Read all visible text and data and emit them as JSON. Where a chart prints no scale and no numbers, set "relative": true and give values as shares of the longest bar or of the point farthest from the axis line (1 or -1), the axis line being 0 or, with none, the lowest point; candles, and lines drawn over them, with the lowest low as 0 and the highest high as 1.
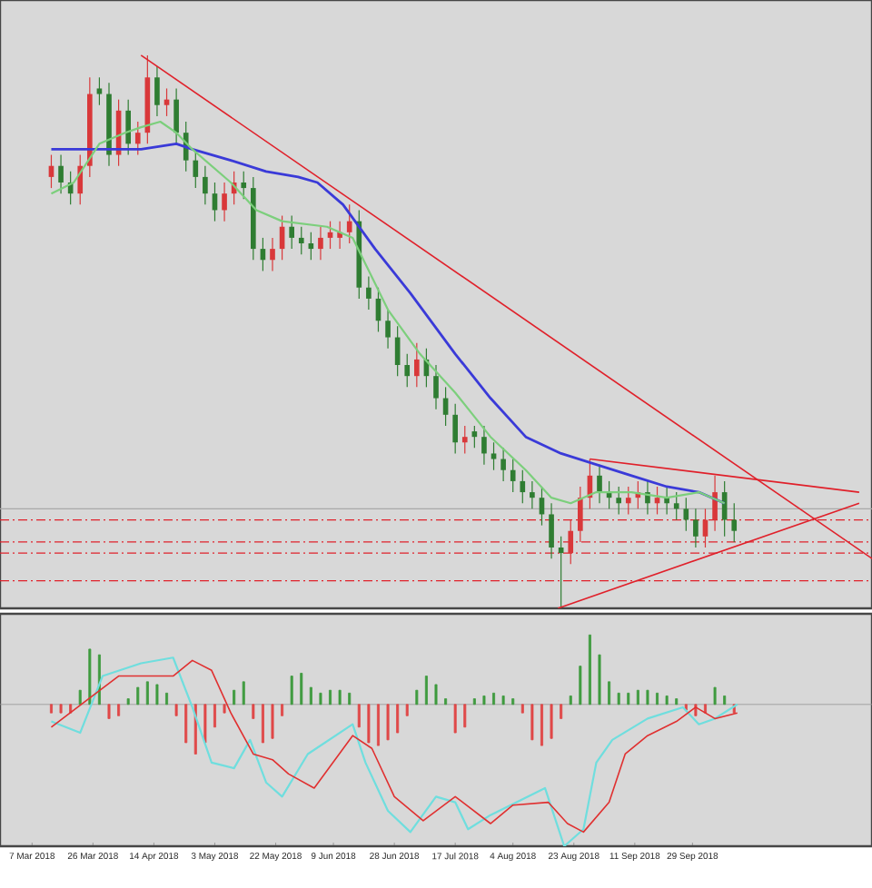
{
  "chart_data": [
    {
      "type": "candlestick",
      "relative": true,
      "xlim": [
        "2018-02-25",
        "2018-11-24"
      ],
      "tick_labels": false,
      "x": [
        "2018-03-13",
        "2018-03-16",
        "2018-03-19",
        "2018-03-22",
        "2018-03-25",
        "2018-03-28",
        "2018-03-31",
        "2018-04-03",
        "2018-04-06",
        "2018-04-09",
        "2018-04-12",
        "2018-04-15",
        "2018-04-18",
        "2018-04-21",
        "2018-04-24",
        "2018-04-27",
        "2018-04-30",
        "2018-05-03",
        "2018-05-06",
        "2018-05-09",
        "2018-05-12",
        "2018-05-15",
        "2018-05-18",
        "2018-05-21",
        "2018-05-24",
        "2018-05-27",
        "2018-05-30",
        "2018-06-02",
        "2018-06-05",
        "2018-06-08",
        "2018-06-11",
        "2018-06-14",
        "2018-06-17",
        "2018-06-20",
        "2018-06-23",
        "2018-06-26",
        "2018-06-29",
        "2018-07-02",
        "2018-07-05",
        "2018-07-08",
        "2018-07-11",
        "2018-07-14",
        "2018-07-17",
        "2018-07-20",
        "2018-07-23",
        "2018-07-26",
        "2018-07-29",
        "2018-08-01",
        "2018-08-04",
        "2018-08-07",
        "2018-08-10",
        "2018-08-13",
        "2018-08-16",
        "2018-08-19",
        "2018-08-22",
        "2018-08-25",
        "2018-08-28",
        "2018-08-31",
        "2018-09-03",
        "2018-09-06",
        "2018-09-09",
        "2018-09-12",
        "2018-09-15",
        "2018-09-18",
        "2018-09-21",
        "2018-09-24",
        "2018-09-27",
        "2018-09-30",
        "2018-10-03",
        "2018-10-06",
        "2018-10-09",
        "2018-10-12"
      ],
      "ohlc": [
        [
          0.78,
          0.82,
          0.76,
          0.8
        ],
        [
          0.8,
          0.82,
          0.75,
          0.77
        ],
        [
          0.77,
          0.79,
          0.73,
          0.75
        ],
        [
          0.75,
          0.82,
          0.73,
          0.8
        ],
        [
          0.8,
          0.96,
          0.78,
          0.93
        ],
        [
          0.94,
          0.96,
          0.91,
          0.93
        ],
        [
          0.93,
          0.95,
          0.8,
          0.82
        ],
        [
          0.82,
          0.92,
          0.8,
          0.9
        ],
        [
          0.9,
          0.92,
          0.82,
          0.84
        ],
        [
          0.84,
          0.88,
          0.82,
          0.86
        ],
        [
          0.86,
          1.0,
          0.84,
          0.96
        ],
        [
          0.96,
          0.98,
          0.89,
          0.91
        ],
        [
          0.91,
          0.94,
          0.89,
          0.92
        ],
        [
          0.92,
          0.94,
          0.84,
          0.86
        ],
        [
          0.86,
          0.88,
          0.79,
          0.81
        ],
        [
          0.81,
          0.83,
          0.76,
          0.78
        ],
        [
          0.78,
          0.8,
          0.73,
          0.75
        ],
        [
          0.75,
          0.77,
          0.7,
          0.72
        ],
        [
          0.72,
          0.77,
          0.7,
          0.75
        ],
        [
          0.75,
          0.79,
          0.73,
          0.77
        ],
        [
          0.77,
          0.79,
          0.74,
          0.76
        ],
        [
          0.76,
          0.78,
          0.63,
          0.65
        ],
        [
          0.65,
          0.67,
          0.61,
          0.63
        ],
        [
          0.63,
          0.67,
          0.61,
          0.65
        ],
        [
          0.65,
          0.71,
          0.63,
          0.69
        ],
        [
          0.69,
          0.71,
          0.65,
          0.67
        ],
        [
          0.67,
          0.69,
          0.64,
          0.66
        ],
        [
          0.66,
          0.68,
          0.63,
          0.65
        ],
        [
          0.65,
          0.69,
          0.63,
          0.67
        ],
        [
          0.67,
          0.7,
          0.65,
          0.68
        ],
        [
          0.67,
          0.7,
          0.65,
          0.68
        ],
        [
          0.68,
          0.73,
          0.66,
          0.7
        ],
        [
          0.7,
          0.72,
          0.56,
          0.58
        ],
        [
          0.58,
          0.6,
          0.54,
          0.56
        ],
        [
          0.56,
          0.58,
          0.5,
          0.52
        ],
        [
          0.52,
          0.54,
          0.47,
          0.49
        ],
        [
          0.49,
          0.51,
          0.42,
          0.44
        ],
        [
          0.44,
          0.46,
          0.4,
          0.42
        ],
        [
          0.42,
          0.48,
          0.4,
          0.45
        ],
        [
          0.45,
          0.47,
          0.4,
          0.42
        ],
        [
          0.42,
          0.44,
          0.36,
          0.38
        ],
        [
          0.38,
          0.4,
          0.33,
          0.35
        ],
        [
          0.35,
          0.37,
          0.28,
          0.3
        ],
        [
          0.3,
          0.33,
          0.28,
          0.31
        ],
        [
          0.32,
          0.33,
          0.29,
          0.31
        ],
        [
          0.31,
          0.33,
          0.26,
          0.28
        ],
        [
          0.28,
          0.3,
          0.25,
          0.27
        ],
        [
          0.27,
          0.29,
          0.23,
          0.25
        ],
        [
          0.25,
          0.27,
          0.21,
          0.23
        ],
        [
          0.23,
          0.25,
          0.19,
          0.21
        ],
        [
          0.21,
          0.23,
          0.18,
          0.2
        ],
        [
          0.2,
          0.22,
          0.15,
          0.17
        ],
        [
          0.17,
          0.19,
          0.09,
          0.11
        ],
        [
          0.11,
          0.13,
          0.0,
          0.1
        ],
        [
          0.1,
          0.16,
          0.08,
          0.14
        ],
        [
          0.14,
          0.22,
          0.12,
          0.2
        ],
        [
          0.2,
          0.27,
          0.18,
          0.24
        ],
        [
          0.24,
          0.26,
          0.19,
          0.21
        ],
        [
          0.21,
          0.23,
          0.18,
          0.2
        ],
        [
          0.2,
          0.22,
          0.17,
          0.19
        ],
        [
          0.19,
          0.22,
          0.17,
          0.2
        ],
        [
          0.2,
          0.23,
          0.18,
          0.21
        ],
        [
          0.21,
          0.23,
          0.17,
          0.19
        ],
        [
          0.19,
          0.22,
          0.17,
          0.2
        ],
        [
          0.2,
          0.22,
          0.17,
          0.19
        ],
        [
          0.19,
          0.21,
          0.16,
          0.18
        ],
        [
          0.18,
          0.2,
          0.14,
          0.16
        ],
        [
          0.16,
          0.18,
          0.11,
          0.13
        ],
        [
          0.13,
          0.18,
          0.11,
          0.16
        ],
        [
          0.16,
          0.24,
          0.14,
          0.21
        ],
        [
          0.21,
          0.23,
          0.13,
          0.16
        ],
        [
          0.16,
          0.19,
          0.12,
          0.14
        ]
      ],
      "colors": [
        "#d9383a",
        "#2f7d32",
        "#2f7d32",
        "#d9383a",
        "#d9383a",
        "#2f7d32",
        "#2f7d32",
        "#d9383a",
        "#2f7d32",
        "#d9383a",
        "#d9383a",
        "#2f7d32",
        "#d9383a",
        "#2f7d32",
        "#2f7d32",
        "#2f7d32",
        "#2f7d32",
        "#2f7d32",
        "#d9383a",
        "#d9383a",
        "#2f7d32",
        "#2f7d32",
        "#2f7d32",
        "#d9383a",
        "#d9383a",
        "#2f7d32",
        "#2f7d32",
        "#2f7d32",
        "#d9383a",
        "#d9383a",
        "#d9383a",
        "#d9383a",
        "#2f7d32",
        "#2f7d32",
        "#2f7d32",
        "#2f7d32",
        "#2f7d32",
        "#2f7d32",
        "#d9383a",
        "#2f7d32",
        "#2f7d32",
        "#2f7d32",
        "#2f7d32",
        "#d9383a",
        "#2f7d32",
        "#2f7d32",
        "#2f7d32",
        "#2f7d32",
        "#2f7d32",
        "#2f7d32",
        "#2f7d32",
        "#2f7d32",
        "#2f7d32",
        "#2f7d32",
        "#d9383a",
        "#d9383a",
        "#d9383a",
        "#2f7d32",
        "#2f7d32",
        "#2f7d32",
        "#d9383a",
        "#d9383a",
        "#2f7d32",
        "#d9383a",
        "#2f7d32",
        "#2f7d32",
        "#2f7d32",
        "#2f7d32",
        "#d9383a",
        "#d9383a",
        "#2f7d32",
        "#2f7d32"
      ],
      "series": [
        {
          "type": "line",
          "color": "#3a3ad8",
          "x": [
            "2018-03-13",
            "2018-03-25",
            "2018-04-10",
            "2018-04-21",
            "2018-04-26",
            "2018-05-08",
            "2018-05-19",
            "2018-05-29",
            "2018-06-04",
            "2018-06-12",
            "2018-06-22",
            "2018-07-03",
            "2018-07-17",
            "2018-07-28",
            "2018-08-08",
            "2018-08-19",
            "2018-08-30",
            "2018-09-10",
            "2018-09-21",
            "2018-10-01",
            "2018-10-09"
          ],
          "values": [
            0.83,
            0.83,
            0.83,
            0.84,
            0.83,
            0.81,
            0.79,
            0.78,
            0.77,
            0.73,
            0.65,
            0.57,
            0.46,
            0.38,
            0.31,
            0.28,
            0.26,
            0.24,
            0.22,
            0.21,
            0.19
          ]
        },
        {
          "type": "line",
          "color": "#7ccf7c",
          "x": [
            "2018-03-13",
            "2018-03-20",
            "2018-03-28",
            "2018-04-05",
            "2018-04-10",
            "2018-04-16",
            "2018-04-21",
            "2018-04-26",
            "2018-05-08",
            "2018-05-16",
            "2018-05-24",
            "2018-06-07",
            "2018-06-15",
            "2018-06-26",
            "2018-07-06",
            "2018-07-17",
            "2018-07-28",
            "2018-08-08",
            "2018-08-16",
            "2018-08-22",
            "2018-08-30",
            "2018-09-10",
            "2018-09-21",
            "2018-10-01",
            "2018-10-09"
          ],
          "values": [
            0.75,
            0.77,
            0.84,
            0.86,
            0.87,
            0.88,
            0.86,
            0.83,
            0.77,
            0.72,
            0.7,
            0.69,
            0.67,
            0.54,
            0.46,
            0.39,
            0.31,
            0.25,
            0.2,
            0.19,
            0.21,
            0.21,
            0.2,
            0.21,
            0.19
          ]
        },
        {
          "type": "line",
          "color": "#e0202a",
          "x": [
            "2018-04-10",
            "2018-11-24"
          ],
          "values": [
            1.0,
            0.09
          ]
        },
        {
          "type": "line",
          "color": "#e0202a",
          "x": [
            "2018-08-28",
            "2018-11-20"
          ],
          "values": [
            0.27,
            0.21
          ]
        },
        {
          "type": "line",
          "color": "#e0202a",
          "x": [
            "2018-08-18",
            "2018-11-20"
          ],
          "values": [
            0.0,
            0.19
          ]
        }
      ],
      "ref_lines": [
        {
          "axis": "y",
          "value": 0.18,
          "color": "#a8a8a8",
          "line_style": "solid"
        },
        {
          "axis": "y",
          "value": 0.16,
          "color": "#e0202a",
          "line_style": "dashed"
        },
        {
          "axis": "y",
          "value": 0.12,
          "color": "#e0202a",
          "line_style": "dashed"
        },
        {
          "axis": "y",
          "value": 0.1,
          "color": "#e0202a",
          "line_style": "dashed"
        },
        {
          "axis": "y",
          "value": 0.05,
          "color": "#e0202a",
          "line_style": "dashed"
        }
      ]
    },
    {
      "type": "bar",
      "relative": true,
      "xlim": [
        "2018-02-25",
        "2018-11-24"
      ],
      "tick_labels": "x",
      "xticks": [
        {
          "value": "2018-03-07",
          "label": "7 Mar 2018"
        },
        {
          "value": "2018-03-26",
          "label": "26 Mar 2018"
        },
        {
          "value": "2018-04-14",
          "label": "14 Apr 2018"
        },
        {
          "value": "2018-05-03",
          "label": "3 May 2018"
        },
        {
          "value": "2018-05-22",
          "label": "22 May 2018"
        },
        {
          "value": "2018-06-09",
          "label": "9 Jun 2018"
        },
        {
          "value": "2018-06-28",
          "label": "28 Jun 2018"
        },
        {
          "value": "2018-07-17",
          "label": "17 Jul 2018"
        },
        {
          "value": "2018-08-04",
          "label": "4 Aug 2018"
        },
        {
          "value": "2018-08-23",
          "label": "23 Aug 2018"
        },
        {
          "value": "2018-09-11",
          "label": "11 Sep 2018"
        },
        {
          "value": "2018-09-29",
          "label": "29 Sep 2018"
        }
      ],
      "series": [
        {
          "type": "bar",
          "x": [
            "2018-03-13",
            "2018-03-16",
            "2018-03-19",
            "2018-03-22",
            "2018-03-25",
            "2018-03-28",
            "2018-03-31",
            "2018-04-03",
            "2018-04-06",
            "2018-04-09",
            "2018-04-12",
            "2018-04-15",
            "2018-04-18",
            "2018-04-21",
            "2018-04-24",
            "2018-04-27",
            "2018-04-30",
            "2018-05-03",
            "2018-05-06",
            "2018-05-09",
            "2018-05-12",
            "2018-05-15",
            "2018-05-18",
            "2018-05-21",
            "2018-05-24",
            "2018-05-27",
            "2018-05-30",
            "2018-06-02",
            "2018-06-05",
            "2018-06-08",
            "2018-06-11",
            "2018-06-14",
            "2018-06-17",
            "2018-06-20",
            "2018-06-23",
            "2018-06-26",
            "2018-06-29",
            "2018-07-02",
            "2018-07-05",
            "2018-07-08",
            "2018-07-11",
            "2018-07-14",
            "2018-07-17",
            "2018-07-20",
            "2018-07-23",
            "2018-07-26",
            "2018-07-29",
            "2018-08-01",
            "2018-08-04",
            "2018-08-07",
            "2018-08-10",
            "2018-08-13",
            "2018-08-16",
            "2018-08-19",
            "2018-08-22",
            "2018-08-25",
            "2018-08-28",
            "2018-08-31",
            "2018-09-03",
            "2018-09-06",
            "2018-09-09",
            "2018-09-12",
            "2018-09-15",
            "2018-09-18",
            "2018-09-21",
            "2018-09-24",
            "2018-09-27",
            "2018-09-30",
            "2018-10-03",
            "2018-10-06",
            "2018-10-09",
            "2018-10-12"
          ],
          "values": [
            -0.06,
            -0.06,
            -0.06,
            0.1,
            0.39,
            0.35,
            -0.1,
            -0.08,
            0.04,
            0.12,
            0.16,
            0.14,
            0.08,
            -0.08,
            -0.27,
            -0.35,
            -0.27,
            -0.16,
            -0.06,
            0.1,
            0.16,
            -0.1,
            -0.27,
            -0.24,
            -0.08,
            0.2,
            0.22,
            0.12,
            0.08,
            0.1,
            0.1,
            0.08,
            -0.16,
            -0.27,
            -0.29,
            -0.25,
            -0.2,
            -0.08,
            0.1,
            0.2,
            0.14,
            0.04,
            -0.2,
            -0.16,
            0.04,
            0.06,
            0.08,
            0.06,
            0.04,
            -0.06,
            -0.25,
            -0.29,
            -0.24,
            -0.1,
            0.06,
            0.27,
            0.49,
            0.35,
            0.16,
            0.08,
            0.08,
            0.1,
            0.1,
            0.08,
            0.06,
            0.04,
            -0.04,
            -0.08,
            -0.06,
            0.12,
            0.06,
            -0.06
          ],
          "colors": [
            "#e04848",
            "#e04848",
            "#e04848",
            "#3f9b3f",
            "#3f9b3f",
            "#3f9b3f",
            "#e04848",
            "#e04848",
            "#3f9b3f",
            "#3f9b3f",
            "#3f9b3f",
            "#3f9b3f",
            "#3f9b3f",
            "#e04848",
            "#e04848",
            "#e04848",
            "#e04848",
            "#e04848",
            "#e04848",
            "#3f9b3f",
            "#3f9b3f",
            "#e04848",
            "#e04848",
            "#e04848",
            "#e04848",
            "#3f9b3f",
            "#3f9b3f",
            "#3f9b3f",
            "#3f9b3f",
            "#3f9b3f",
            "#3f9b3f",
            "#3f9b3f",
            "#e04848",
            "#e04848",
            "#e04848",
            "#e04848",
            "#e04848",
            "#e04848",
            "#3f9b3f",
            "#3f9b3f",
            "#3f9b3f",
            "#3f9b3f",
            "#e04848",
            "#e04848",
            "#3f9b3f",
            "#3f9b3f",
            "#3f9b3f",
            "#3f9b3f",
            "#3f9b3f",
            "#e04848",
            "#e04848",
            "#e04848",
            "#e04848",
            "#e04848",
            "#3f9b3f",
            "#3f9b3f",
            "#3f9b3f",
            "#3f9b3f",
            "#3f9b3f",
            "#3f9b3f",
            "#3f9b3f",
            "#3f9b3f",
            "#3f9b3f",
            "#3f9b3f",
            "#3f9b3f",
            "#3f9b3f",
            "#e04848",
            "#e04848",
            "#e04848",
            "#3f9b3f",
            "#3f9b3f",
            "#e04848"
          ]
        },
        {
          "type": "line",
          "color": "#6fdede",
          "x": [
            "2018-03-13",
            "2018-03-22",
            "2018-03-29",
            "2018-04-10",
            "2018-04-20",
            "2018-04-26",
            "2018-05-02",
            "2018-05-09",
            "2018-05-14",
            "2018-05-19",
            "2018-05-24",
            "2018-06-01",
            "2018-06-15",
            "2018-06-19",
            "2018-06-26",
            "2018-07-03",
            "2018-07-11",
            "2018-07-17",
            "2018-07-21",
            "2018-07-28",
            "2018-08-14",
            "2018-08-20",
            "2018-08-26",
            "2018-08-30",
            "2018-09-04",
            "2018-09-15",
            "2018-09-26",
            "2018-10-01",
            "2018-10-06",
            "2018-10-13"
          ],
          "values": [
            -0.12,
            -0.2,
            0.2,
            0.29,
            0.33,
            -0.02,
            -0.41,
            -0.45,
            -0.25,
            -0.55,
            -0.65,
            -0.35,
            -0.14,
            -0.41,
            -0.75,
            -0.9,
            -0.65,
            -0.69,
            -0.88,
            -0.78,
            -0.59,
            -1.0,
            -0.88,
            -0.41,
            -0.25,
            -0.1,
            -0.02,
            -0.14,
            -0.1,
            0.0
          ]
        },
        {
          "type": "line",
          "color": "#e03030",
          "x": [
            "2018-03-13",
            "2018-04-03",
            "2018-04-20",
            "2018-04-26",
            "2018-05-02",
            "2018-05-08",
            "2018-05-15",
            "2018-05-21",
            "2018-05-26",
            "2018-06-03",
            "2018-06-15",
            "2018-06-21",
            "2018-06-28",
            "2018-07-07",
            "2018-07-17",
            "2018-07-28",
            "2018-08-04",
            "2018-08-15",
            "2018-08-21",
            "2018-08-26",
            "2018-09-03",
            "2018-09-08",
            "2018-09-15",
            "2018-09-24",
            "2018-09-30",
            "2018-10-06",
            "2018-10-13"
          ],
          "values": [
            -0.16,
            0.2,
            0.2,
            0.31,
            0.24,
            -0.06,
            -0.35,
            -0.39,
            -0.49,
            -0.59,
            -0.22,
            -0.31,
            -0.65,
            -0.82,
            -0.65,
            -0.84,
            -0.71,
            -0.69,
            -0.84,
            -0.9,
            -0.69,
            -0.35,
            -0.22,
            -0.12,
            -0.02,
            -0.1,
            -0.06
          ]
        }
      ]
    }
  ]
}
